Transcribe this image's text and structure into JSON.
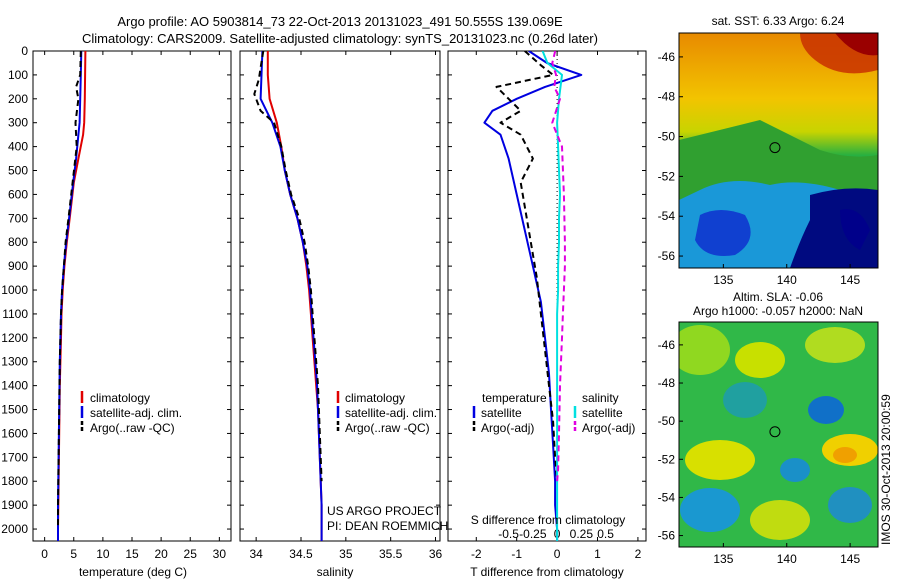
{
  "header": {
    "line1": "Argo profile: AO 5903814_73 22-Oct-2013 20131023_491 50.555S 139.069E",
    "line2": "Climatology: CARS2009. Satellite-adjusted climatology: synTS_20131023.nc (0.26d later)"
  },
  "colors": {
    "climatology": "#e00000",
    "satellite": "#0000e0",
    "argo": "#000000",
    "satellite_salinity": "#00e0e0",
    "argo_salinity": "#e000e0"
  },
  "chart_data": [
    {
      "type": "line",
      "id": "temperature",
      "xlabel": "temperature (deg C)",
      "ylabel": "",
      "xlim": [
        -2,
        32
      ],
      "ylim": [
        2050,
        0
      ],
      "xticks": [
        0,
        5,
        10,
        15,
        20,
        25,
        30
      ],
      "yticks": [
        0,
        100,
        200,
        300,
        400,
        500,
        600,
        700,
        800,
        900,
        1000,
        1100,
        1200,
        1300,
        1400,
        1500,
        1600,
        1700,
        1800,
        1900,
        2000
      ],
      "legend": [
        "climatology",
        "satellite-adj. clim.",
        "Argo(..raw -QC)"
      ],
      "series": [
        {
          "name": "climatology",
          "style": "solid",
          "x": [
            7.0,
            6.95,
            6.9,
            6.8,
            6.6,
            5.8,
            5.0,
            4.3,
            3.8,
            3.4,
            3.1,
            2.9,
            2.8,
            2.7,
            2.6,
            2.55,
            2.5,
            2.45,
            2.4,
            2.35,
            2.3,
            2.3
          ],
          "y": [
            0,
            100,
            200,
            300,
            350,
            450,
            550,
            700,
            800,
            900,
            1000,
            1100,
            1200,
            1300,
            1400,
            1500,
            1600,
            1700,
            1800,
            1900,
            2000,
            2050
          ]
        },
        {
          "name": "satellite-adj. clim.",
          "style": "solid",
          "x": [
            6.3,
            6.2,
            6.1,
            6.0,
            5.8,
            5.4,
            4.9,
            4.2,
            3.7,
            3.3,
            3.0,
            2.8,
            2.7,
            2.6,
            2.55,
            2.5,
            2.45,
            2.4,
            2.35,
            2.3,
            2.3,
            2.3
          ],
          "y": [
            0,
            100,
            200,
            300,
            350,
            450,
            550,
            700,
            800,
            900,
            1000,
            1100,
            1200,
            1300,
            1400,
            1500,
            1600,
            1700,
            1800,
            1900,
            2000,
            2050
          ]
        },
        {
          "name": "Argo(..raw -QC)",
          "style": "dashed",
          "x": [
            6.2,
            6.1,
            5.4,
            5.8,
            5.3,
            5.5,
            4.8,
            4.1,
            3.6,
            3.3,
            3.0,
            2.8,
            2.7,
            2.6,
            2.55,
            2.5,
            2.45,
            2.4,
            2.35,
            2.3,
            2.3
          ],
          "y": [
            0,
            100,
            150,
            200,
            300,
            400,
            550,
            700,
            800,
            900,
            1000,
            1100,
            1200,
            1300,
            1400,
            1500,
            1600,
            1700,
            1800,
            1900,
            2000
          ]
        }
      ]
    },
    {
      "type": "line",
      "id": "salinity",
      "xlabel": "salinity",
      "ylabel": "",
      "xlim": [
        33.82,
        36.05
      ],
      "ylim": [
        2050,
        0
      ],
      "xticks": [
        34,
        34.5,
        35,
        35.5,
        36
      ],
      "xticklabels": [
        "34",
        "34.5",
        "35",
        "35.5",
        "36"
      ],
      "legend": [
        "climatology",
        "satellite-adj. clim.",
        "Argo(..raw -QC)"
      ],
      "annotation": [
        "US ARGO PROJECT",
        "PI: DEAN ROEMMICH"
      ],
      "series": [
        {
          "name": "climatology",
          "style": "solid",
          "x": [
            34.13,
            34.13,
            34.15,
            34.23,
            34.28,
            34.32,
            34.38,
            34.46,
            34.52,
            34.56,
            34.59,
            34.61,
            34.63,
            34.65,
            34.67,
            34.69,
            34.7,
            34.71,
            34.72,
            34.73,
            34.73,
            34.73
          ],
          "y": [
            0,
            100,
            200,
            300,
            400,
            500,
            600,
            700,
            800,
            900,
            1000,
            1100,
            1200,
            1300,
            1400,
            1500,
            1600,
            1700,
            1800,
            1900,
            2000,
            2050
          ]
        },
        {
          "name": "satellite-adj. clim.",
          "style": "solid",
          "x": [
            34.07,
            34.06,
            34.05,
            34.18,
            34.27,
            34.32,
            34.38,
            34.46,
            34.52,
            34.57,
            34.6,
            34.62,
            34.64,
            34.66,
            34.68,
            34.69,
            34.7,
            34.71,
            34.72,
            34.73,
            34.73,
            34.73
          ],
          "y": [
            0,
            100,
            200,
            300,
            400,
            500,
            600,
            700,
            800,
            900,
            1000,
            1100,
            1200,
            1300,
            1400,
            1500,
            1600,
            1700,
            1800,
            1900,
            2000,
            2050
          ]
        },
        {
          "name": "Argo(..raw -QC)",
          "style": "dashed",
          "x": [
            34.08,
            34.05,
            34.03,
            33.98,
            34.05,
            34.2,
            34.28,
            34.33,
            34.39,
            34.48,
            34.54,
            34.58,
            34.61,
            34.63,
            34.65,
            34.67,
            34.69,
            34.7,
            34.71,
            34.72,
            34.73
          ],
          "y": [
            0,
            70,
            120,
            180,
            250,
            300,
            400,
            500,
            600,
            700,
            800,
            900,
            1000,
            1100,
            1200,
            1300,
            1400,
            1500,
            1600,
            1700,
            1800
          ]
        }
      ]
    },
    {
      "type": "line",
      "id": "difference",
      "xlabel": "T difference from climatology",
      "xlabel2": "S difference from climatology",
      "ylabel": "",
      "xlim": [
        -2.7,
        2.2
      ],
      "ylim": [
        2050,
        0
      ],
      "xticks": [
        -2,
        -1,
        0,
        1,
        2
      ],
      "xticks2": [
        -0.5,
        -0.25,
        0,
        0.25,
        0.5
      ],
      "xticklabels2": [
        "-0.5",
        "-0.25",
        "0",
        "0.25",
        "0.5"
      ],
      "legend_titles": [
        "temperature",
        "salinity"
      ],
      "legend": [
        "satellite",
        "Argo(-adj)",
        "satellite",
        "Argo(-adj)"
      ],
      "series": [
        {
          "name": "temperature satellite",
          "style": "solid",
          "x": [
            -0.7,
            -0.25,
            0.6,
            -0.3,
            -1.0,
            -1.6,
            -1.8,
            -1.4,
            -1.2,
            -1.0,
            -0.8,
            -0.6,
            -0.4,
            -0.3,
            -0.2,
            -0.15,
            -0.1,
            -0.05,
            -0.05,
            0,
            0
          ],
          "y": [
            0,
            50,
            100,
            150,
            200,
            250,
            300,
            350,
            450,
            600,
            750,
            900,
            1050,
            1200,
            1350,
            1500,
            1650,
            1800,
            1900,
            2000,
            2050
          ]
        },
        {
          "name": "temperature Argo(-adj)",
          "style": "dashed",
          "x": [
            -0.8,
            -0.4,
            -0.1,
            -1.5,
            -1.2,
            -0.9,
            -1.4,
            -0.9,
            -0.6,
            -0.9,
            -0.7,
            -0.5,
            -0.4,
            -0.3,
            -0.2,
            -0.1,
            -0.05,
            0
          ],
          "y": [
            0,
            60,
            100,
            150,
            200,
            250,
            300,
            350,
            450,
            550,
            750,
            950,
            1100,
            1250,
            1400,
            1550,
            1700,
            1800
          ]
        },
        {
          "name": "salinity satellite",
          "style": "solid",
          "x": [
            -0.15,
            -0.1,
            0.05,
            0.02,
            0.0,
            0.01,
            0.02,
            0.03,
            0.02,
            0.02,
            0.01,
            0.01,
            0.0,
            0.0,
            0.0,
            0.0,
            0.0,
            0.0,
            0.0
          ],
          "y": [
            0,
            50,
            100,
            200,
            300,
            400,
            500,
            600,
            700,
            800,
            900,
            1000,
            1100,
            1200,
            1400,
            1600,
            1800,
            2000,
            2050
          ]
        },
        {
          "name": "salinity Argo(-adj)",
          "style": "dashed",
          "x": [
            -0.02,
            -0.05,
            -0.01,
            -0.03,
            0.03,
            -0.05,
            0.05,
            0.07,
            0.08,
            0.08,
            0.07,
            0.06,
            0.05,
            0.03,
            0.02,
            0.01,
            0.0
          ],
          "y": [
            0,
            50,
            100,
            150,
            200,
            300,
            400,
            600,
            800,
            900,
            1000,
            1100,
            1200,
            1400,
            1600,
            1750,
            1800
          ]
        }
      ]
    },
    {
      "type": "heatmap",
      "id": "sst-map",
      "title": "sat. SST: 6.33 Argo: 6.24",
      "xlim": [
        131.5,
        147.2
      ],
      "ylim": [
        -56.6,
        -44.8
      ],
      "xticks": [
        135,
        140,
        145
      ],
      "yticks": [
        -46,
        -48,
        -50,
        -52,
        -54,
        -56
      ],
      "profile_location": [
        139.069,
        -50.555
      ]
    },
    {
      "type": "heatmap",
      "id": "sla-map",
      "title": "Altim. SLA: -0.06",
      "title2": "Argo h1000: -0.057 h2000: NaN",
      "xlim": [
        131.5,
        147.2
      ],
      "ylim": [
        -56.6,
        -44.8
      ],
      "xticks": [
        135,
        140,
        145
      ],
      "yticks": [
        -46,
        -48,
        -50,
        -52,
        -54,
        -56
      ],
      "profile_location": [
        139.069,
        -50.555
      ]
    }
  ],
  "footer": {
    "imos_stamp": "IMOS 30-Oct-2013 20:00:59"
  }
}
